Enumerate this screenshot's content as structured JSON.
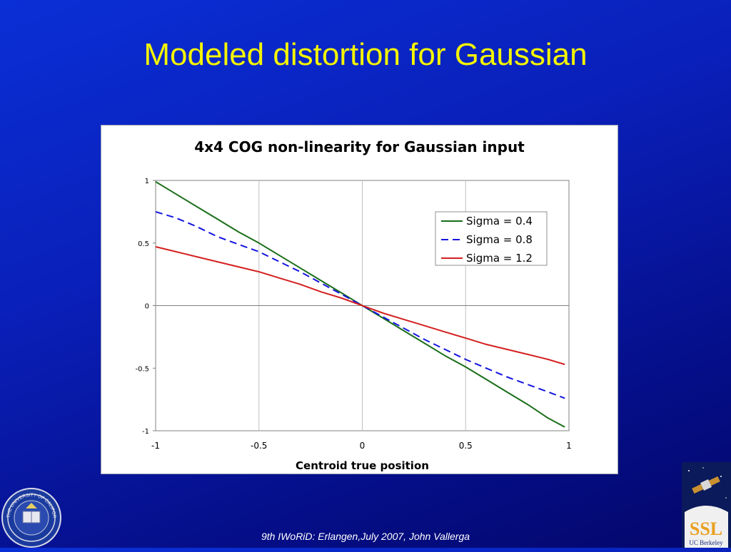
{
  "slide": {
    "title": "Modeled distortion for Gaussian",
    "footer": "9th IWoRiD: Erlangen,July 2007, John Vallerga"
  },
  "logos": {
    "left_seal": {
      "icon": "uc-seal-icon",
      "text": "THE UNIVERSITY OF CALIFORNIA · BERKELEY · 1868"
    },
    "right_logo": {
      "icon": "ssl-logo-icon",
      "text_main": "SSL",
      "text_sub": "UC Berkeley"
    }
  },
  "chart_data": {
    "type": "line",
    "title": "4x4 COG non-linearity for Gaussian input",
    "xlabel": "Centroid true position",
    "ylabel": "",
    "xlim": [
      -1,
      1
    ],
    "ylim": [
      -1,
      1
    ],
    "xticks": [
      "-1",
      "-0.5",
      "0",
      "0.5",
      "1"
    ],
    "yticks": [
      "1",
      "0.5",
      "0",
      "-0.5",
      "-1"
    ],
    "grid": "vertical",
    "legend_position": "top-right",
    "x": [
      -1,
      -0.9,
      -0.8,
      -0.7,
      -0.6,
      -0.5,
      -0.4,
      -0.3,
      -0.2,
      -0.1,
      0,
      0.1,
      0.2,
      0.3,
      0.4,
      0.5,
      0.6,
      0.7,
      0.8,
      0.9,
      0.98
    ],
    "series": [
      {
        "name": "Sigma = 0.4",
        "color": "#1a6e1a",
        "dash": "solid",
        "values": [
          0.99,
          0.89,
          0.79,
          0.69,
          0.59,
          0.5,
          0.4,
          0.3,
          0.2,
          0.1,
          0,
          -0.1,
          -0.2,
          -0.3,
          -0.4,
          -0.49,
          -0.59,
          -0.69,
          -0.79,
          -0.9,
          -0.97
        ]
      },
      {
        "name": "Sigma = 0.8",
        "color": "#1515e0",
        "dash": "dashed",
        "values": [
          0.75,
          0.7,
          0.63,
          0.55,
          0.49,
          0.43,
          0.35,
          0.27,
          0.18,
          0.09,
          0,
          -0.09,
          -0.18,
          -0.27,
          -0.35,
          -0.43,
          -0.5,
          -0.57,
          -0.63,
          -0.69,
          -0.74
        ]
      },
      {
        "name": "Sigma = 1.2",
        "color": "#d42020",
        "dash": "solid",
        "values": [
          0.47,
          0.43,
          0.39,
          0.35,
          0.31,
          0.27,
          0.22,
          0.17,
          0.11,
          0.06,
          0,
          -0.06,
          -0.11,
          -0.16,
          -0.21,
          -0.26,
          -0.31,
          -0.35,
          -0.39,
          -0.43,
          -0.47
        ]
      }
    ]
  }
}
